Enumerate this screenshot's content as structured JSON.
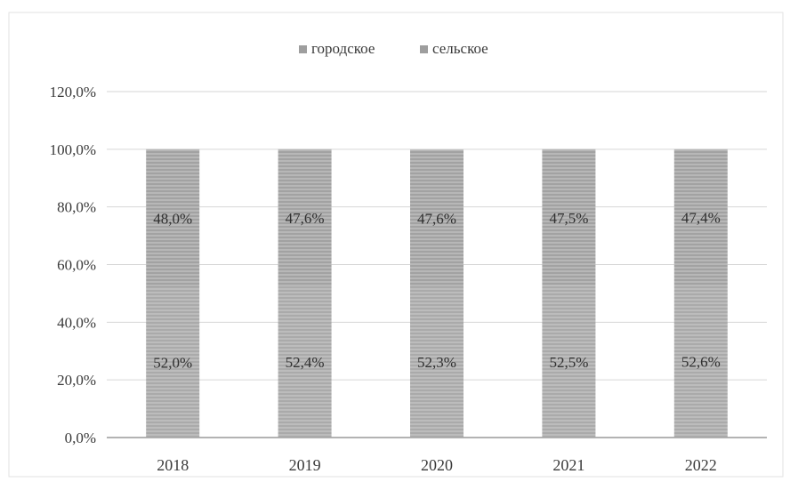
{
  "chart_data": {
    "type": "bar",
    "stacked": true,
    "categories": [
      "2018",
      "2019",
      "2020",
      "2021",
      "2022"
    ],
    "series": [
      {
        "name": "городское",
        "values": [
          52.0,
          52.4,
          52.3,
          52.5,
          52.6
        ],
        "labels": [
          "52,0%",
          "52,4%",
          "52,3%",
          "52,5%",
          "52,6%"
        ],
        "color": "#b0b0b0"
      },
      {
        "name": "сельское",
        "values": [
          48.0,
          47.6,
          47.6,
          47.5,
          47.4
        ],
        "labels": [
          "48,0%",
          "47,6%",
          "47,6%",
          "47,5%",
          "47,4%"
        ],
        "color": "#a6a6a6"
      }
    ],
    "yticks": [
      "0,0%",
      "20,0%",
      "40,0%",
      "60,0%",
      "80,0%",
      "100,0%",
      "120,0%"
    ],
    "ylim": [
      0,
      120
    ],
    "grid": true,
    "legend_position": "top"
  }
}
